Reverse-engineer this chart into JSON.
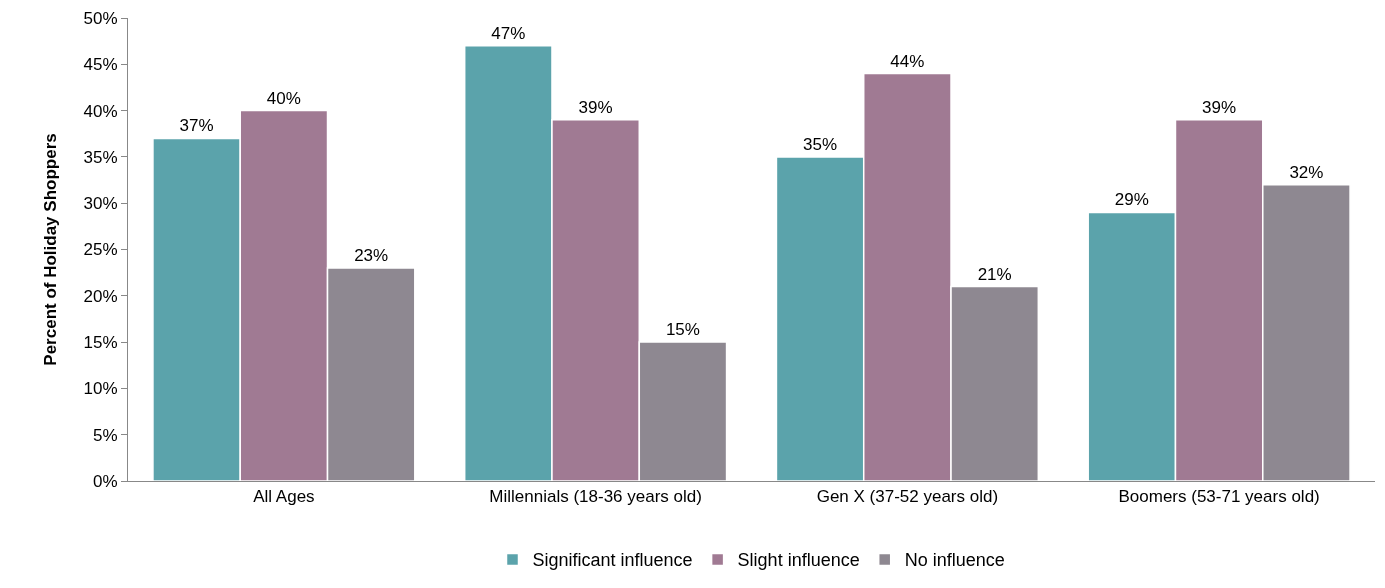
{
  "chart_data": {
    "type": "bar",
    "ylabel": "Percent of Holiday Shoppers",
    "categories": [
      "All Ages",
      "Millennials (18-36 years old)",
      "Gen X (37-52 years old)",
      "Boomers (53-71 years old)"
    ],
    "series": [
      {
        "name": "Significant influence",
        "color": "#5ba3ab",
        "values": [
          37,
          47,
          35,
          29
        ],
        "value_labels": [
          "37%",
          "47%",
          "35%",
          "29%"
        ]
      },
      {
        "name": "Slight influence",
        "color": "#a07a93",
        "values": [
          40,
          39,
          44,
          39
        ],
        "value_labels": [
          "40%",
          "39%",
          "44%",
          "39%"
        ]
      },
      {
        "name": "No influence",
        "color": "#8e8891",
        "values": [
          23,
          15,
          21,
          32
        ],
        "value_labels": [
          "23%",
          "15%",
          "21%",
          "32%"
        ]
      }
    ],
    "ylim": [
      0,
      50
    ],
    "yticks": [
      {
        "value": 0,
        "label": "0%"
      },
      {
        "value": 5,
        "label": "5%"
      },
      {
        "value": 10,
        "label": "10%"
      },
      {
        "value": 15,
        "label": "15%"
      },
      {
        "value": 20,
        "label": "20%"
      },
      {
        "value": 25,
        "label": "25%"
      },
      {
        "value": 30,
        "label": "30%"
      },
      {
        "value": 35,
        "label": "35%"
      },
      {
        "value": 40,
        "label": "40%"
      },
      {
        "value": 45,
        "label": "45%"
      },
      {
        "value": 50,
        "label": "50%"
      }
    ],
    "legend": "bottom"
  }
}
